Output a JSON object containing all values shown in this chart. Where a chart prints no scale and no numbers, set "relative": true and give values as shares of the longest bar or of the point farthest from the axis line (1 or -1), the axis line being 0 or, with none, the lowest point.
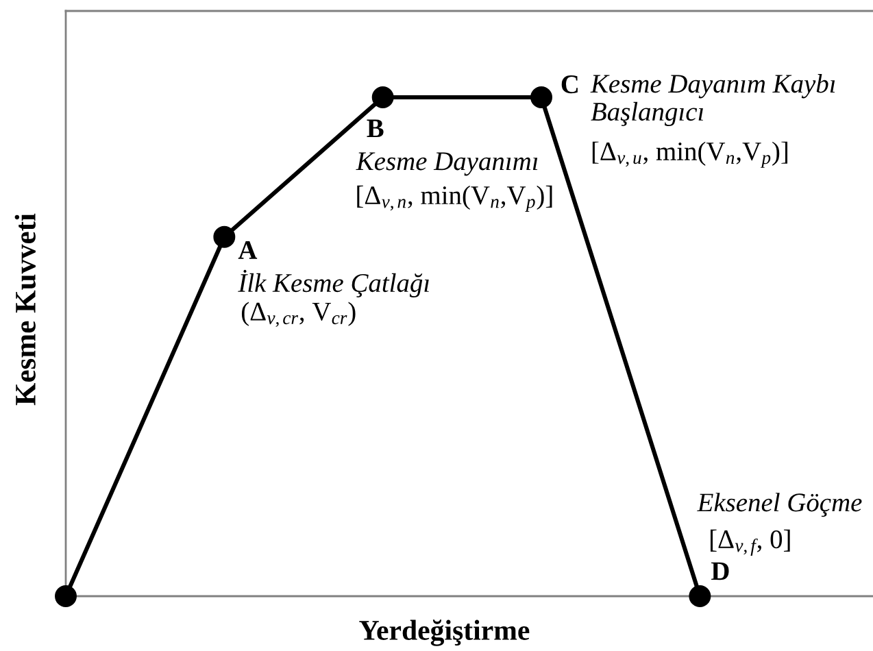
{
  "chart_data": {
    "type": "line",
    "relative": true,
    "xlabel": "Yerdeğiştirme",
    "ylabel": "Kesme Kuvveti",
    "marker": "circle",
    "line_style": "solid",
    "categories": [
      null,
      null,
      null,
      null,
      null
    ],
    "series": [
      {
        "color": "#000000",
        "values": [
          0,
          0.72,
          1,
          1,
          0
        ]
      }
    ],
    "annotations": [
      "A",
      "İlk Kesme Çatlağı",
      "(Δ$_{v,cr}$, V$_{cr}$)",
      "B",
      "Kesme Dayanımı",
      "[Δ$_{v,n}$, min(V$_{n}$,V$_{p}$)]",
      "C",
      "Kesme Dayanım Kaybı Başlangıcı",
      "[Δ$_{v,u}$, min(V$_{n}$,V$_{p}$)]",
      "Eksenel Göçme",
      "[Δ$_{v,f}$, 0]",
      "D"
    ]
  }
}
